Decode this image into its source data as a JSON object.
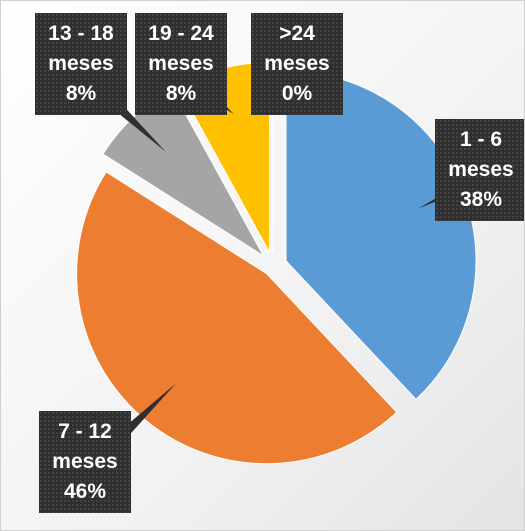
{
  "chart_data": {
    "type": "pie",
    "categories": [
      "1 - 6 meses",
      "7 - 12 meses",
      "13 - 18 meses",
      "19 - 24 meses",
      ">24 meses"
    ],
    "values": [
      38,
      46,
      8,
      8,
      0
    ],
    "value_labels": [
      "38%",
      "46%",
      "8%",
      "8%",
      "0%"
    ],
    "colors": [
      "#5b9bd5",
      "#ed7d31",
      "#a5a5a5",
      "#ffc000",
      "#4472c4"
    ]
  }
}
